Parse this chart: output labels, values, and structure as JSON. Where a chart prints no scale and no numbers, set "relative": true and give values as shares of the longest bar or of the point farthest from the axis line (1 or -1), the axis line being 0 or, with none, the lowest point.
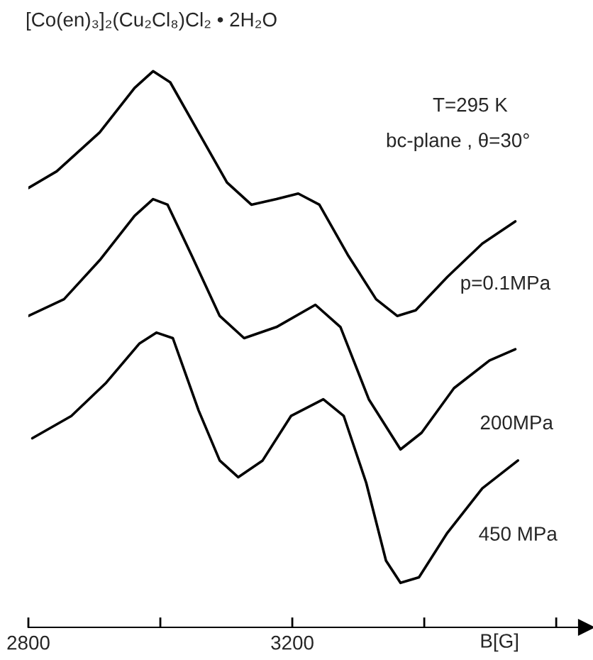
{
  "chart_data": {
    "type": "line",
    "relative": true,
    "title": "[Co(en)₃]₂(Cu₂Cl₈)Cl₂ • 2H₂O",
    "xlabel": "B[G]",
    "annotations": [
      "T=295 K",
      "bc-plane , θ=30°"
    ],
    "xlim": [
      2800,
      3645
    ],
    "xticks": [
      2800,
      {
        "value": 3000,
        "label": null
      },
      3200,
      {
        "value": 3400,
        "label": null
      },
      {
        "value": 3600,
        "label": null
      }
    ],
    "grid": false,
    "legend": false,
    "marker": "none",
    "line_style": "solid",
    "series": [
      {
        "name": "p=0.1MPa",
        "color": "#000000",
        "x": [
          2800,
          2843,
          2908,
          2961,
          2989,
          3015,
          3058,
          3101,
          3138,
          3176,
          3209,
          3241,
          3284,
          3327,
          3359,
          3387,
          3435,
          3488,
          3538
        ],
        "values": [
          0.79,
          0.82,
          0.89,
          0.97,
          1.0,
          0.98,
          0.89,
          0.8,
          0.76,
          0.77,
          0.78,
          0.76,
          0.67,
          0.59,
          0.56,
          0.57,
          0.63,
          0.69,
          0.73
        ]
      },
      {
        "name": "200MPa",
        "color": "#000000",
        "x": [
          2800,
          2854,
          2908,
          2961,
          2989,
          3011,
          3047,
          3090,
          3127,
          3176,
          3235,
          3273,
          3316,
          3364,
          3396,
          3445,
          3499,
          3538
        ],
        "values": [
          0.56,
          0.59,
          0.66,
          0.74,
          0.77,
          0.76,
          0.67,
          0.56,
          0.52,
          0.54,
          0.58,
          0.54,
          0.41,
          0.32,
          0.35,
          0.43,
          0.48,
          0.5
        ]
      },
      {
        "name": "450 MPa",
        "color": "#000000",
        "x": [
          2806,
          2865,
          2918,
          2968,
          2994,
          3019,
          3058,
          3090,
          3118,
          3155,
          3198,
          3247,
          3278,
          3312,
          3342,
          3364,
          3392,
          3435,
          3488,
          3542
        ],
        "values": [
          0.34,
          0.38,
          0.44,
          0.51,
          0.53,
          0.52,
          0.39,
          0.3,
          0.27,
          0.3,
          0.38,
          0.41,
          0.38,
          0.26,
          0.12,
          0.08,
          0.09,
          0.17,
          0.25,
          0.3
        ]
      }
    ]
  }
}
